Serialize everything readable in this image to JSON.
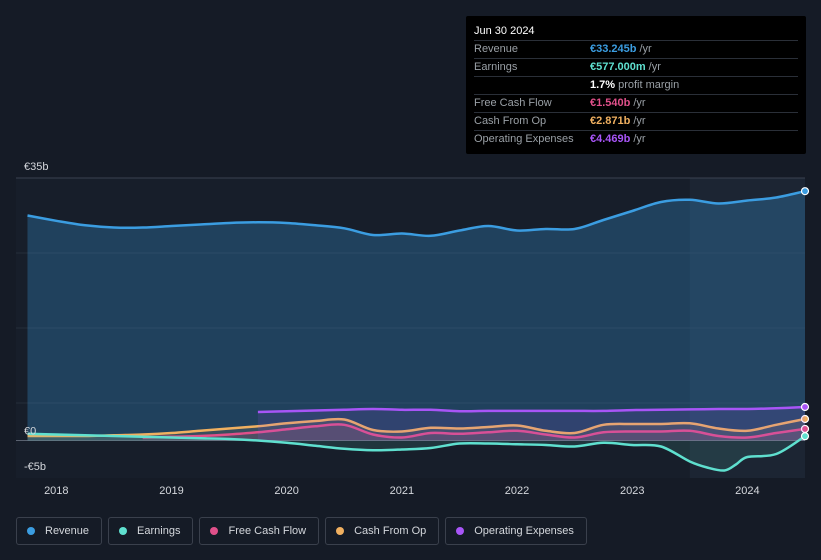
{
  "tooltip": {
    "date": "Jun 30 2024",
    "rows": [
      {
        "label": "Revenue",
        "value": "€33.245b",
        "suffix": "/yr",
        "color": "#3b9de1"
      },
      {
        "label": "Earnings",
        "value": "€577.000m",
        "suffix": "/yr",
        "color": "#5fe0cf"
      },
      {
        "label": "",
        "value": "1.7%",
        "suffix": "profit margin",
        "color": "#ffffff"
      },
      {
        "label": "Free Cash Flow",
        "value": "€1.540b",
        "suffix": "/yr",
        "color": "#e0508a"
      },
      {
        "label": "Cash From Op",
        "value": "€2.871b",
        "suffix": "/yr",
        "color": "#f0b060"
      },
      {
        "label": "Operating Expenses",
        "value": "€4.469b",
        "suffix": "/yr",
        "color": "#a855f7"
      }
    ]
  },
  "legend": [
    {
      "label": "Revenue",
      "color": "#3b9de1"
    },
    {
      "label": "Earnings",
      "color": "#5fe0cf"
    },
    {
      "label": "Free Cash Flow",
      "color": "#e0508a"
    },
    {
      "label": "Cash From Op",
      "color": "#f0b060"
    },
    {
      "label": "Operating Expenses",
      "color": "#a855f7"
    }
  ],
  "chart_data": {
    "type": "line",
    "y_tick_labels": [
      "€35b",
      "€0",
      "-€5b"
    ],
    "x_tick_labels": [
      "2018",
      "2019",
      "2020",
      "2021",
      "2022",
      "2023",
      "2024"
    ],
    "ylim": [
      -5,
      35
    ],
    "xlim": [
      2017.65,
      2024.5
    ],
    "highlight_from": 2023.5,
    "series": [
      {
        "name": "Revenue",
        "color": "#3b9de1",
        "area": true,
        "x": [
          2017.75,
          2018.0,
          2018.25,
          2018.5,
          2018.75,
          2019.0,
          2019.25,
          2019.5,
          2019.75,
          2020.0,
          2020.25,
          2020.5,
          2020.75,
          2021.0,
          2021.25,
          2021.5,
          2021.75,
          2022.0,
          2022.25,
          2022.5,
          2022.75,
          2023.0,
          2023.25,
          2023.5,
          2023.75,
          2024.0,
          2024.25,
          2024.5
        ],
        "y": [
          30.0,
          29.3,
          28.7,
          28.4,
          28.4,
          28.6,
          28.8,
          29.0,
          29.1,
          29.0,
          28.7,
          28.3,
          27.4,
          27.6,
          27.3,
          28.0,
          28.6,
          28.0,
          28.2,
          28.2,
          29.4,
          30.6,
          31.8,
          32.1,
          31.6,
          32.0,
          32.4,
          33.245
        ]
      },
      {
        "name": "Earnings",
        "color": "#5fe0cf",
        "area": false,
        "x": [
          2017.75,
          2018.0,
          2018.25,
          2018.5,
          2018.75,
          2019.0,
          2019.25,
          2019.5,
          2019.75,
          2020.0,
          2020.25,
          2020.5,
          2020.75,
          2021.0,
          2021.25,
          2021.5,
          2021.75,
          2022.0,
          2022.25,
          2022.5,
          2022.75,
          2023.0,
          2023.25,
          2023.5,
          2023.65,
          2023.8,
          2023.9,
          2024.0,
          2024.25,
          2024.5
        ],
        "y": [
          0.9,
          0.8,
          0.7,
          0.6,
          0.5,
          0.4,
          0.3,
          0.2,
          0.0,
          -0.3,
          -0.7,
          -1.1,
          -1.3,
          -1.2,
          -1.0,
          -0.4,
          -0.4,
          -0.5,
          -0.6,
          -0.8,
          -0.3,
          -0.6,
          -0.8,
          -2.8,
          -3.6,
          -4.0,
          -3.2,
          -2.2,
          -1.8,
          0.577
        ]
      },
      {
        "name": "Free Cash Flow",
        "color": "#e0508a",
        "area": false,
        "x": [
          2018.75,
          2019.0,
          2019.25,
          2019.5,
          2019.75,
          2020.0,
          2020.25,
          2020.5,
          2020.75,
          2021.0,
          2021.25,
          2021.5,
          2021.75,
          2022.0,
          2022.25,
          2022.5,
          2022.75,
          2023.0,
          2023.25,
          2023.5,
          2023.75,
          2024.0,
          2024.25,
          2024.5
        ],
        "y": [
          0.4,
          0.5,
          0.6,
          0.8,
          1.1,
          1.5,
          1.9,
          2.1,
          0.8,
          0.4,
          1.0,
          0.9,
          1.1,
          1.3,
          0.8,
          0.4,
          1.1,
          1.2,
          1.2,
          1.3,
          0.6,
          0.4,
          1.0,
          1.54
        ]
      },
      {
        "name": "Cash From Op",
        "color": "#f0b060",
        "area": false,
        "x": [
          2017.75,
          2018.0,
          2018.25,
          2018.5,
          2018.75,
          2019.0,
          2019.25,
          2019.5,
          2019.75,
          2020.0,
          2020.25,
          2020.5,
          2020.75,
          2021.0,
          2021.25,
          2021.5,
          2021.75,
          2022.0,
          2022.25,
          2022.5,
          2022.75,
          2023.0,
          2023.25,
          2023.5,
          2023.75,
          2024.0,
          2024.25,
          2024.5
        ],
        "y": [
          0.6,
          0.6,
          0.6,
          0.7,
          0.8,
          1.0,
          1.3,
          1.6,
          1.9,
          2.3,
          2.6,
          2.8,
          1.4,
          1.2,
          1.7,
          1.6,
          1.8,
          2.0,
          1.3,
          1.0,
          2.1,
          2.2,
          2.2,
          2.3,
          1.6,
          1.3,
          2.1,
          2.871
        ]
      },
      {
        "name": "Operating Expenses",
        "color": "#a855f7",
        "area": false,
        "x": [
          2019.75,
          2020.0,
          2020.25,
          2020.5,
          2020.75,
          2021.0,
          2021.25,
          2021.5,
          2021.75,
          2022.0,
          2022.25,
          2022.5,
          2022.75,
          2023.0,
          2023.25,
          2023.5,
          2023.75,
          2024.0,
          2024.25,
          2024.5
        ],
        "y": [
          3.8,
          3.9,
          4.0,
          4.1,
          4.2,
          4.1,
          4.1,
          3.9,
          3.95,
          3.95,
          3.95,
          3.95,
          3.95,
          4.05,
          4.1,
          4.15,
          4.2,
          4.2,
          4.3,
          4.469
        ]
      }
    ]
  }
}
